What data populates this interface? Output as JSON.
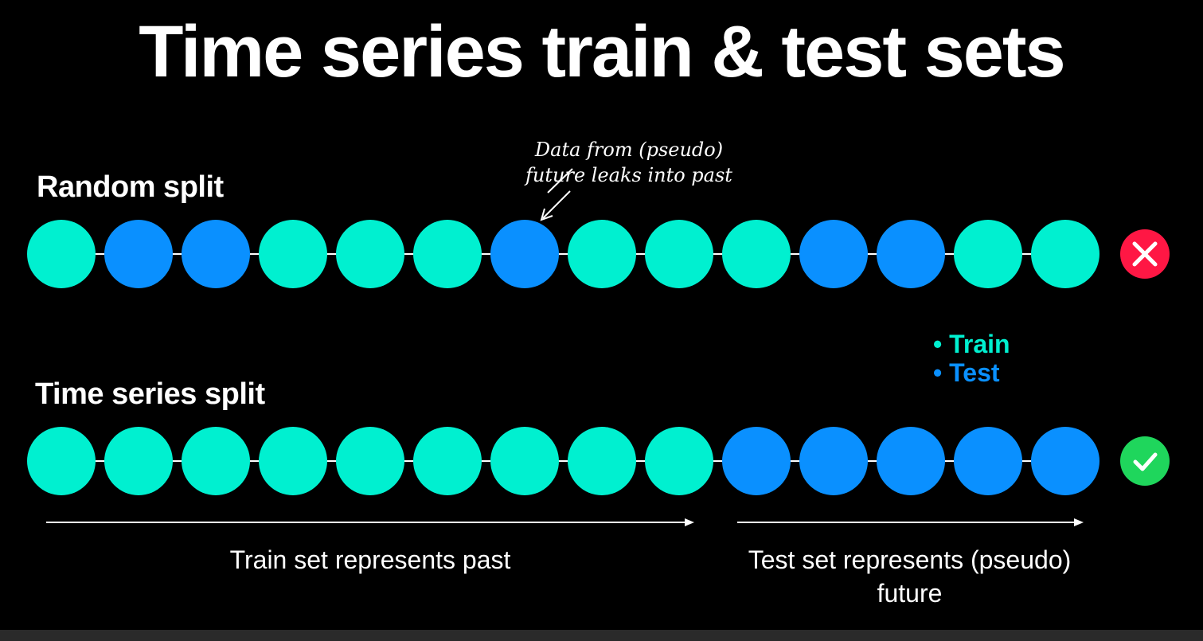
{
  "title": "Time series train & test sets",
  "random_split": {
    "label": "Random split",
    "points": [
      "train",
      "test",
      "test",
      "train",
      "train",
      "train",
      "test",
      "train",
      "train",
      "train",
      "test",
      "test",
      "train",
      "train"
    ],
    "status": "incorrect"
  },
  "annotation": {
    "line1": "Data from (pseudo)",
    "line2": "future leaks into past"
  },
  "legend": {
    "train_label": "Train",
    "test_label": "Test"
  },
  "time_series_split": {
    "label": "Time series split",
    "points": [
      "train",
      "train",
      "train",
      "train",
      "train",
      "train",
      "train",
      "train",
      "train",
      "test",
      "test",
      "test",
      "test",
      "test"
    ],
    "status": "correct"
  },
  "arrows": {
    "train_label": "Train set represents past",
    "test_label": "Test set represents (pseudo) future"
  },
  "colors": {
    "background": "#000000",
    "train": "#00F0D0",
    "test": "#0A90FF",
    "incorrect": "#FF1744",
    "correct": "#1FD65C"
  }
}
